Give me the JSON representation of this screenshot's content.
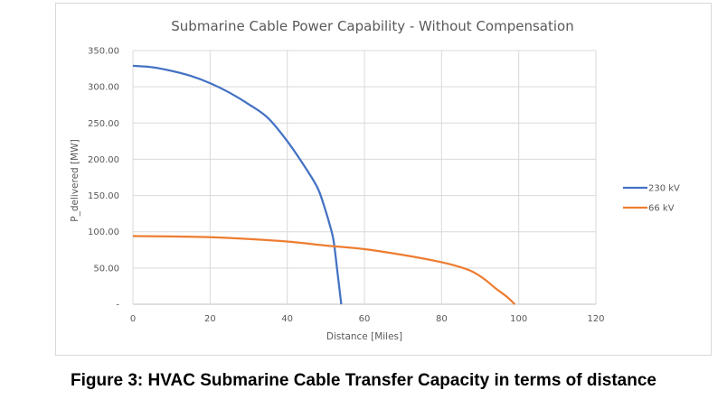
{
  "chart_data": {
    "type": "line",
    "title": "Submarine Cable Power Capability - Without Compensation",
    "xlabel": "Distance [Miles]",
    "ylabel": "P_delivered [MW]",
    "xlim": [
      0,
      120
    ],
    "ylim": [
      0,
      350
    ],
    "x_ticks": [
      "0",
      "20",
      "40",
      "60",
      "80",
      "100",
      "120"
    ],
    "y_ticks": [
      "-",
      "50.00",
      "100.00",
      "150.00",
      "200.00",
      "250.00",
      "300.00",
      "350.00"
    ],
    "grid": true,
    "legend_position": "right",
    "series": [
      {
        "name": "230 kV",
        "color": "#4472c4",
        "points": [
          [
            0,
            329
          ],
          [
            5,
            327
          ],
          [
            10,
            322
          ],
          [
            15,
            315
          ],
          [
            20,
            305
          ],
          [
            25,
            292
          ],
          [
            30,
            276
          ],
          [
            35,
            257
          ],
          [
            40,
            225
          ],
          [
            45,
            186
          ],
          [
            48,
            159
          ],
          [
            50,
            128
          ],
          [
            51,
            110
          ],
          [
            52,
            88
          ],
          [
            53,
            45
          ],
          [
            54,
            0
          ]
        ]
      },
      {
        "name": "66 kV",
        "color": "#ed7d31",
        "points": [
          [
            0,
            94
          ],
          [
            10,
            93.5
          ],
          [
            20,
            92.5
          ],
          [
            30,
            90
          ],
          [
            40,
            86.5
          ],
          [
            50,
            81
          ],
          [
            60,
            76
          ],
          [
            70,
            68
          ],
          [
            80,
            58
          ],
          [
            85,
            51
          ],
          [
            88,
            45
          ],
          [
            91,
            35
          ],
          [
            94,
            22
          ],
          [
            97,
            10
          ],
          [
            99,
            0
          ]
        ]
      }
    ]
  },
  "caption": "Figure 3: HVAC Submarine Cable Transfer Capacity in terms of distance"
}
